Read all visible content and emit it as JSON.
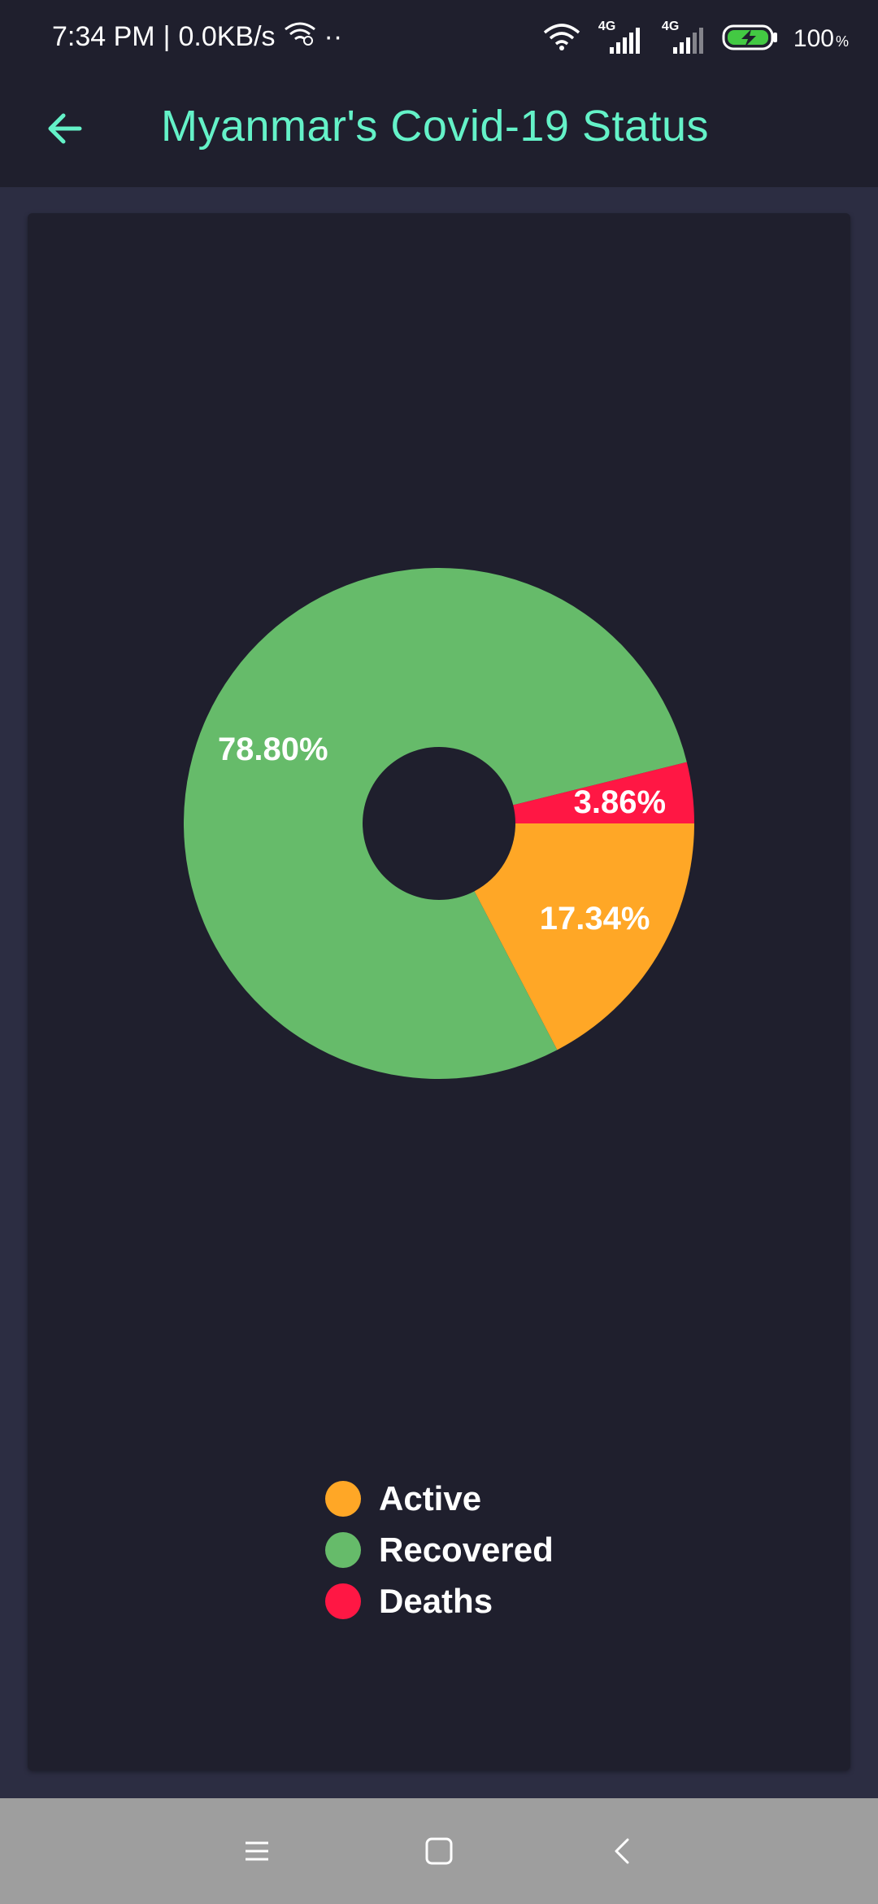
{
  "status_bar": {
    "time": "7:34 PM",
    "separator": "|",
    "net_speed": "0.0KB/s",
    "dots": "··",
    "network_1": "4G",
    "network_2": "4G",
    "battery_percent": "100",
    "battery_unit": "%",
    "icons": [
      "wifi-hotspot-icon",
      "wifi-icon",
      "signal-4g-icon",
      "signal-4g-icon",
      "battery-charging-icon"
    ]
  },
  "app_bar": {
    "title": "Myanmar's Covid-19 Status",
    "back_icon": "arrow-left-icon",
    "accent_color": "#64f2c8"
  },
  "chart_data": {
    "type": "pie",
    "categories": [
      "Active",
      "Recovered",
      "Deaths"
    ],
    "values": [
      17.34,
      78.8,
      3.86
    ],
    "labels": [
      "17.34%",
      "78.80%",
      "3.86%"
    ],
    "colors": [
      "#ffa726",
      "#66bb6a",
      "#ff1744"
    ],
    "donut": true,
    "legend_position": "bottom-center",
    "start_angle_deg": 0,
    "direction": "clockwise"
  },
  "legend": {
    "items": [
      {
        "label": "Active",
        "color": "#ffa726"
      },
      {
        "label": "Recovered",
        "color": "#66bb6a"
      },
      {
        "label": "Deaths",
        "color": "#ff1744"
      }
    ]
  },
  "nav_bar": {
    "icons": [
      "menu-icon",
      "home-square-icon",
      "back-chevron-icon"
    ]
  }
}
